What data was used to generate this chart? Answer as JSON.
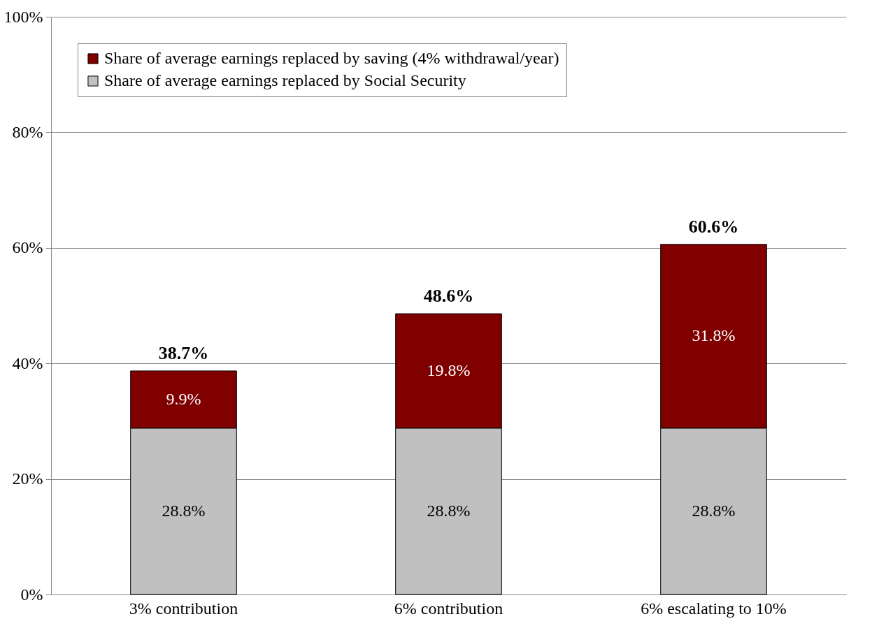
{
  "chart_data": {
    "type": "bar",
    "stacked": true,
    "categories": [
      "3% contribution",
      "6% contribution",
      "6% escalating to 10%"
    ],
    "series": [
      {
        "name": "Share of average earnings replaced by Social Security",
        "color": "#c0c0c0",
        "values": [
          28.8,
          28.8,
          28.8
        ],
        "value_labels": [
          "28.8%",
          "28.8%",
          "28.8%"
        ]
      },
      {
        "name": "Share of average earnings replaced by saving (4% withdrawal/year)",
        "color": "#800000",
        "values": [
          9.9,
          19.8,
          31.8
        ],
        "value_labels": [
          "9.9%",
          "19.8%",
          "31.8%"
        ]
      }
    ],
    "totals": [
      "38.7%",
      "48.6%",
      "60.6%"
    ],
    "ylim": [
      0,
      100
    ],
    "yticks": [
      {
        "value": 0,
        "label": "0%"
      },
      {
        "value": 20,
        "label": "20%"
      },
      {
        "value": 40,
        "label": "40%"
      },
      {
        "value": 60,
        "label": "60%"
      },
      {
        "value": 80,
        "label": "80%"
      },
      {
        "value": 100,
        "label": "100%"
      }
    ],
    "grid": "y",
    "legend": "top left"
  }
}
